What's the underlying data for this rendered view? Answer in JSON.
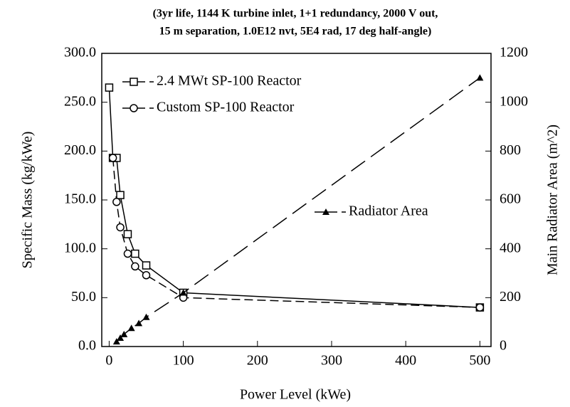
{
  "chart_data": {
    "type": "line",
    "title": [
      "(3yr life, 1144 K turbine inlet, 1+1 redundancy, 2000 V out,",
      "15 m separation, 1.0E12 nvt, 5E4 rad, 17 deg half-angle)"
    ],
    "x_label": "Power Level (kWe)",
    "y_label": "Specific Mass (kg/kWe)",
    "y2_label": "Main Radiator Area (m^2)",
    "xlim": [
      -10,
      515
    ],
    "xticks": [
      0,
      100,
      200,
      300,
      400,
      500
    ],
    "ylim": [
      0,
      300
    ],
    "yticks": [
      {
        "value": 0,
        "label": "0.0"
      },
      {
        "value": 50,
        "label": "50.0"
      },
      {
        "value": 100,
        "label": "100.0"
      },
      {
        "value": 150,
        "label": "150.0"
      },
      {
        "value": 200,
        "label": "200.0"
      },
      {
        "value": 250,
        "label": "250.0"
      },
      {
        "value": 300,
        "label": "300.0"
      }
    ],
    "y2lim": [
      0,
      1200
    ],
    "y2ticks": [
      0,
      200,
      400,
      600,
      800,
      1000,
      1200
    ],
    "series": [
      {
        "name": "2.4 MWt SP-100 Reactor",
        "color": "#000000",
        "marker": "square",
        "dash": "solid",
        "x": [
          0,
          5,
          10,
          15,
          25,
          35,
          50,
          100,
          500
        ],
        "values": [
          265,
          193,
          193,
          155,
          115,
          95,
          83,
          55,
          40
        ]
      },
      {
        "name": "Custom SP-100 Reactor",
        "color": "#000000",
        "marker": "circle",
        "dash": "dashed",
        "x": [
          5,
          10,
          15,
          25,
          35,
          50,
          100,
          500
        ],
        "values": [
          193,
          148,
          122,
          95,
          82,
          73,
          50,
          40
        ]
      },
      {
        "name": "Radiator Area",
        "color": "#000000",
        "marker": "triangle",
        "dash": "longdash",
        "axis": "y2",
        "x": [
          10,
          15,
          20,
          30,
          40,
          50,
          100,
          500
        ],
        "values": [
          20,
          35,
          50,
          75,
          95,
          120,
          220,
          1100
        ]
      }
    ]
  }
}
